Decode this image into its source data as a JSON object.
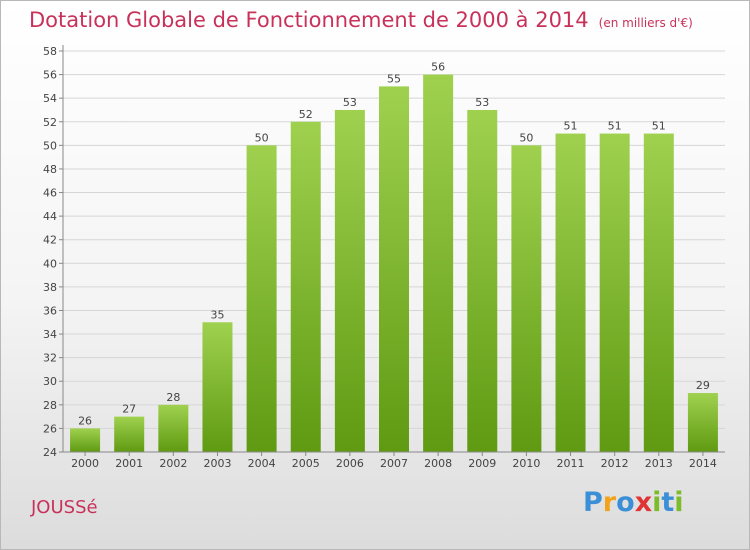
{
  "title": "Dotation Globale de Fonctionnement de 2000 à 2014",
  "unit": "(en milliers d'€)",
  "commune": "JOUSSé",
  "logo": {
    "letters": [
      "P",
      "r",
      "o",
      "x",
      "i",
      "t",
      "i"
    ],
    "colors": [
      "#3b8fd6",
      "#f2a31b",
      "#3b8fd6",
      "#e03434",
      "#7cbb2a",
      "#3b8fd6",
      "#7cbb2a"
    ]
  },
  "chart_data": {
    "type": "bar",
    "categories": [
      "2000",
      "2001",
      "2002",
      "2003",
      "2004",
      "2005",
      "2006",
      "2007",
      "2008",
      "2009",
      "2010",
      "2011",
      "2012",
      "2013",
      "2014"
    ],
    "values": [
      26,
      27,
      28,
      35,
      50,
      52,
      53,
      55,
      56,
      53,
      50,
      51,
      51,
      51,
      29
    ],
    "ylim": [
      24,
      58
    ],
    "yticks": [
      24,
      26,
      28,
      30,
      32,
      34,
      36,
      38,
      40,
      42,
      44,
      46,
      48,
      50,
      52,
      54,
      56,
      58
    ],
    "grid": true,
    "bar_color": "#7cbb2a"
  }
}
